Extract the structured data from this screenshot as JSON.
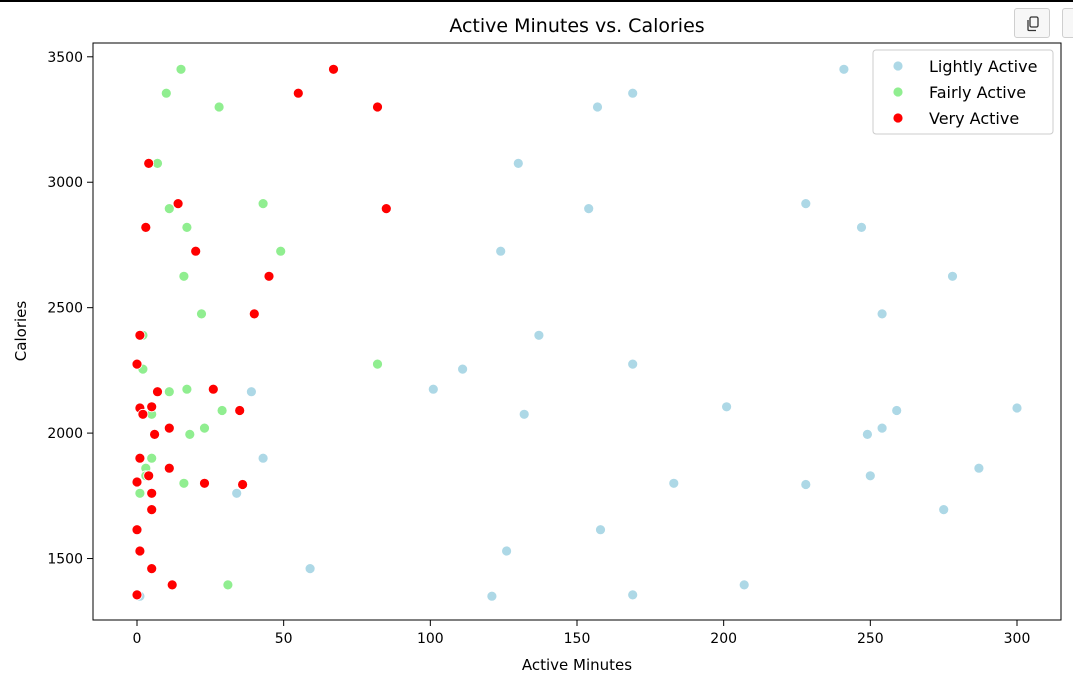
{
  "toolbar": {
    "copy_icon": "copy-icon"
  },
  "chart_data": {
    "type": "scatter",
    "title": "Active Minutes vs. Calories",
    "xlabel": "Active Minutes",
    "ylabel": "Calories",
    "xlim": [
      -15,
      315
    ],
    "ylim": [
      1255,
      3555
    ],
    "xticks": [
      0,
      50,
      100,
      150,
      200,
      250,
      300
    ],
    "yticks": [
      1500,
      2000,
      2500,
      3000,
      3500
    ],
    "grid": false,
    "legend_position": "top-right",
    "series": [
      {
        "name": "Lightly Active",
        "color": "#add8e6",
        "points": [
          [
            241,
            3450
          ],
          [
            169,
            3355
          ],
          [
            157,
            3300
          ],
          [
            130,
            3075
          ],
          [
            154,
            2895
          ],
          [
            228,
            2915
          ],
          [
            247,
            2820
          ],
          [
            124,
            2725
          ],
          [
            278,
            2625
          ],
          [
            254,
            2475
          ],
          [
            137,
            2390
          ],
          [
            169,
            2275
          ],
          [
            111,
            2255
          ],
          [
            101,
            2175
          ],
          [
            39,
            2165
          ],
          [
            201,
            2105
          ],
          [
            132,
            2075
          ],
          [
            259,
            2090
          ],
          [
            300,
            2100
          ],
          [
            254,
            2020
          ],
          [
            249,
            1995
          ],
          [
            43,
            1900
          ],
          [
            287,
            1860
          ],
          [
            250,
            1830
          ],
          [
            183,
            1800
          ],
          [
            228,
            1795
          ],
          [
            34,
            1760
          ],
          [
            275,
            1695
          ],
          [
            158,
            1615
          ],
          [
            126,
            1530
          ],
          [
            59,
            1460
          ],
          [
            121,
            1350
          ],
          [
            169,
            1355
          ],
          [
            207,
            1395
          ],
          [
            1,
            1350
          ]
        ]
      },
      {
        "name": "Fairly Active",
        "color": "#90ee90",
        "points": [
          [
            15,
            3450
          ],
          [
            10,
            3355
          ],
          [
            28,
            3300
          ],
          [
            7,
            3075
          ],
          [
            11,
            2895
          ],
          [
            43,
            2915
          ],
          [
            17,
            2820
          ],
          [
            49,
            2725
          ],
          [
            16,
            2625
          ],
          [
            22,
            2475
          ],
          [
            2,
            2390
          ],
          [
            82,
            2275
          ],
          [
            2,
            2255
          ],
          [
            11,
            2165
          ],
          [
            17,
            2175
          ],
          [
            29,
            2090
          ],
          [
            5,
            2075
          ],
          [
            23,
            2020
          ],
          [
            18,
            1995
          ],
          [
            5,
            1900
          ],
          [
            3,
            1860
          ],
          [
            16,
            1800
          ],
          [
            1,
            1760
          ],
          [
            31,
            1395
          ],
          [
            3,
            1830
          ]
        ]
      },
      {
        "name": "Very Active",
        "color": "#ff0000",
        "points": [
          [
            67,
            3450
          ],
          [
            55,
            3355
          ],
          [
            82,
            3300
          ],
          [
            4,
            3075
          ],
          [
            85,
            2895
          ],
          [
            14,
            2915
          ],
          [
            3,
            2820
          ],
          [
            20,
            2725
          ],
          [
            45,
            2625
          ],
          [
            40,
            2475
          ],
          [
            1,
            2390
          ],
          [
            0,
            2275
          ],
          [
            7,
            2165
          ],
          [
            26,
            2175
          ],
          [
            35,
            2090
          ],
          [
            1,
            2100
          ],
          [
            5,
            2105
          ],
          [
            2,
            2075
          ],
          [
            11,
            2020
          ],
          [
            6,
            1995
          ],
          [
            1,
            1900
          ],
          [
            11,
            1860
          ],
          [
            4,
            1830
          ],
          [
            0,
            1805
          ],
          [
            23,
            1800
          ],
          [
            36,
            1795
          ],
          [
            5,
            1760
          ],
          [
            5,
            1695
          ],
          [
            0,
            1615
          ],
          [
            1,
            1530
          ],
          [
            5,
            1460
          ],
          [
            12,
            1395
          ],
          [
            0,
            1355
          ]
        ]
      }
    ]
  }
}
